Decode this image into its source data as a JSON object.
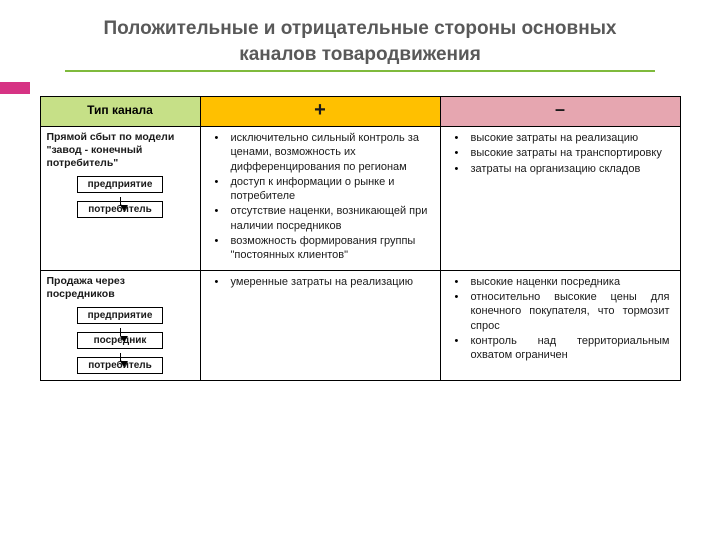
{
  "title": {
    "line1": "Положительные и отрицательные стороны основных",
    "line2": "каналов товародвижения"
  },
  "colors": {
    "accent_bar": "#d63384",
    "underline": "#7fba3c",
    "header_col0_bg": "#c6e087",
    "header_col1_bg": "#ffc000",
    "header_col2_bg": "#e6a6b0",
    "border": "#000000",
    "title_text": "#595959",
    "body_text": "#1a1a1a"
  },
  "table": {
    "headers": {
      "col0": "Тип канала",
      "col1": "+",
      "col2": "–"
    },
    "rows": [
      {
        "channel_title": "Прямой сбыт по модели \"завод - конечный потребитель\"",
        "diagram": [
          "предприятие",
          "потребитель"
        ],
        "plus": [
          "исключительно сильный контроль за ценами, возможность их дифференцирования по регионам",
          "доступ к информации о рынке и потребителе",
          "отсутствие наценки, возникающей при наличии посредников",
          "возможность формирования группы \"постоянных клиентов\""
        ],
        "plus_justify": false,
        "minus": [
          "высокие затраты на реализацию",
          "высокие затраты на транспортировку",
          "затраты на организацию складов"
        ],
        "minus_justify": false
      },
      {
        "channel_title": "Продажа через посредников",
        "diagram": [
          "предприятие",
          "посредник",
          "потребитель"
        ],
        "plus": [
          "умеренные затраты на реализацию"
        ],
        "plus_justify": true,
        "minus": [
          "высокие наценки посредника",
          "относительно высокие цены для конечного покупателя, что тормозит спрос",
          "контроль над территориальным охватом ограничен"
        ],
        "minus_justify": true
      }
    ]
  }
}
